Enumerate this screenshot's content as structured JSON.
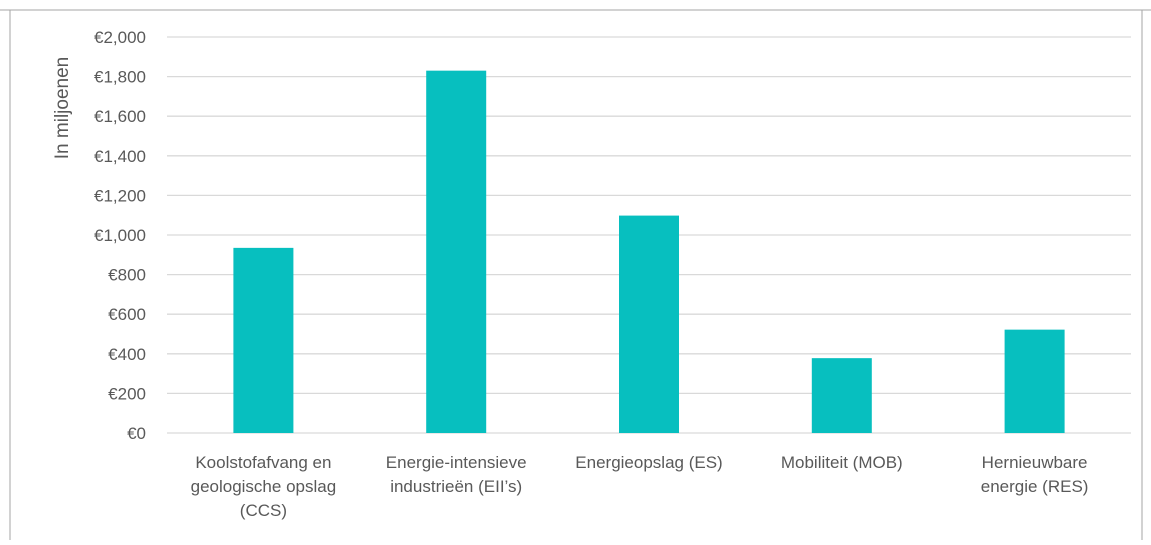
{
  "chart_data": {
    "type": "bar",
    "ylabel": "In miljoenen",
    "ylim": [
      0,
      2000
    ],
    "ytick_step": 200,
    "ytick_labels": [
      "€0",
      "€200",
      "€400",
      "€600",
      "€800",
      "€1,000",
      "€1,200",
      "€1,400",
      "€1,600",
      "€1,800",
      "€2,000"
    ],
    "categories": [
      [
        "Koolstofafvang en",
        "geologische opslag",
        "(CCS)"
      ],
      [
        "Energie-intensieve",
        "industrieën (EII’s)"
      ],
      [
        "Energieopslag (ES)"
      ],
      [
        "Mobiliteit (MOB)"
      ],
      [
        "Hernieuwbare",
        "energie (RES)"
      ]
    ],
    "values": [
      935,
      1830,
      1098,
      378,
      522
    ],
    "bar_color": "#07BFBF",
    "gridlines": true,
    "legend": "none"
  },
  "colors": {
    "grid": "#D9D9D9",
    "text": "#595959",
    "frame": "#A6A6A6"
  }
}
